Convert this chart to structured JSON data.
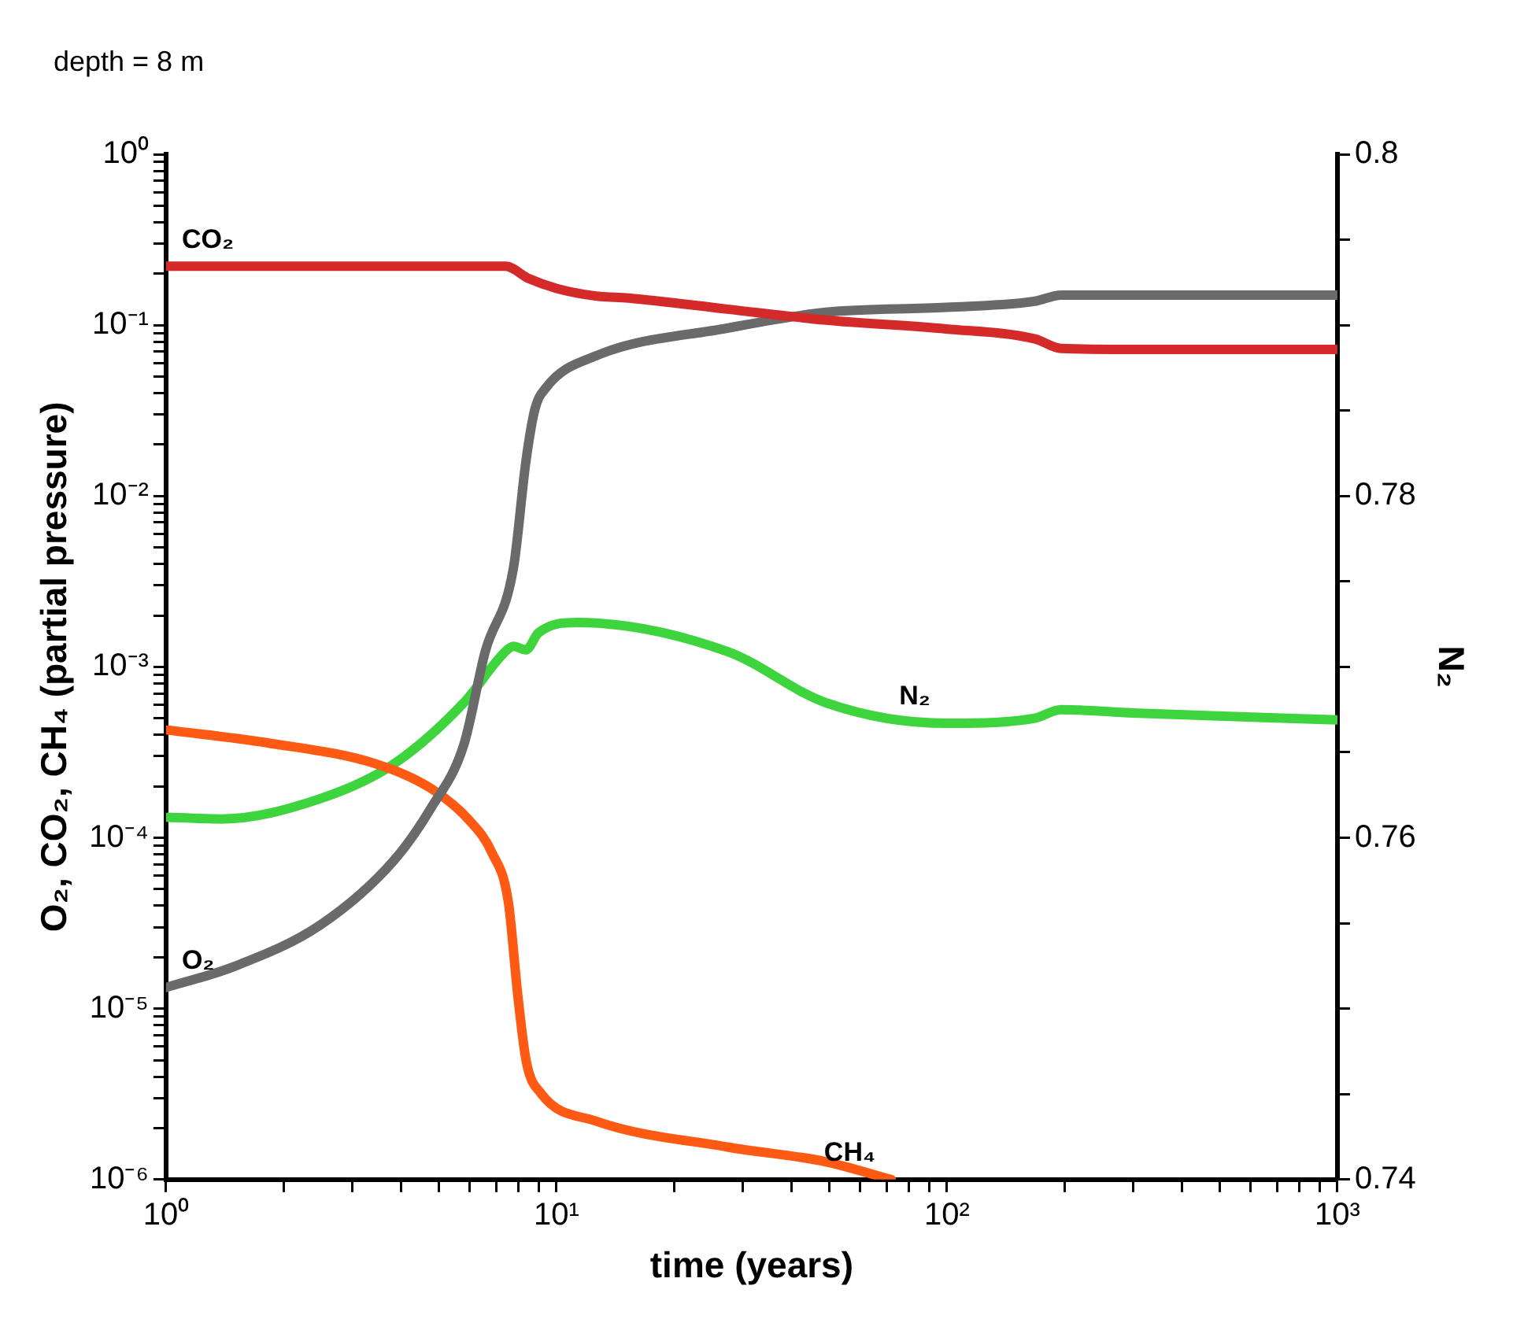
{
  "chart_data": {
    "type": "line",
    "xlabel": "time (years)",
    "ylabel": "O₂, CO₂, CH₄ (partial pressure)",
    "y2label": "N₂",
    "log": "xy",
    "grid": false,
    "xlim": [
      1,
      1000
    ],
    "xticks": [
      {
        "value": 1,
        "label": "10⁰"
      },
      {
        "value": 2,
        "label": null
      },
      {
        "value": 3,
        "label": null
      },
      {
        "value": 4,
        "label": null
      },
      {
        "value": 5,
        "label": null
      },
      {
        "value": 6,
        "label": null
      },
      {
        "value": 7,
        "label": null
      },
      {
        "value": 8,
        "label": null
      },
      {
        "value": 9,
        "label": null
      },
      {
        "value": 10,
        "label": "10¹"
      },
      {
        "value": 20,
        "label": null
      },
      {
        "value": 30,
        "label": null
      },
      {
        "value": 40,
        "label": null
      },
      {
        "value": 50,
        "label": null
      },
      {
        "value": 60,
        "label": null
      },
      {
        "value": 70,
        "label": null
      },
      {
        "value": 80,
        "label": null
      },
      {
        "value": 90,
        "label": null
      },
      {
        "value": 100,
        "label": "10²"
      },
      {
        "value": 200,
        "label": null
      },
      {
        "value": 300,
        "label": null
      },
      {
        "value": 400,
        "label": null
      },
      {
        "value": 500,
        "label": null
      },
      {
        "value": 600,
        "label": null
      },
      {
        "value": 700,
        "label": null
      },
      {
        "value": 800,
        "label": null
      },
      {
        "value": 900,
        "label": null
      },
      {
        "value": 1000,
        "label": "10³"
      }
    ],
    "ylim": [
      1e-06,
      1
    ],
    "yticks": [
      {
        "value": 1e-06,
        "label": "10⁻⁶"
      },
      {
        "value": 1e-05,
        "label": "10⁻⁵"
      },
      {
        "value": 0.0001,
        "label": "10⁻⁴"
      },
      {
        "value": 0.001,
        "label": "10⁻³"
      },
      {
        "value": 0.01,
        "label": "10⁻²"
      },
      {
        "value": 0.1,
        "label": "10⁻¹"
      },
      {
        "value": 1,
        "label": "10⁰"
      },
      {
        "value": 2e-06,
        "label": null
      },
      {
        "value": 3e-06,
        "label": null
      },
      {
        "value": 4e-06,
        "label": null
      },
      {
        "value": 5e-06,
        "label": null
      },
      {
        "value": 6e-06,
        "label": null
      },
      {
        "value": 7e-06,
        "label": null
      },
      {
        "value": 8e-06,
        "label": null
      },
      {
        "value": 9e-06,
        "label": null
      },
      {
        "value": 2e-05,
        "label": null
      },
      {
        "value": 3e-05,
        "label": null
      },
      {
        "value": 4e-05,
        "label": null
      },
      {
        "value": 5e-05,
        "label": null
      },
      {
        "value": 6e-05,
        "label": null
      },
      {
        "value": 7e-05,
        "label": null
      },
      {
        "value": 8e-05,
        "label": null
      },
      {
        "value": 9e-05,
        "label": null
      },
      {
        "value": 0.0002,
        "label": null
      },
      {
        "value": 0.0003,
        "label": null
      },
      {
        "value": 0.0004,
        "label": null
      },
      {
        "value": 0.0005,
        "label": null
      },
      {
        "value": 0.0006,
        "label": null
      },
      {
        "value": 0.0007,
        "label": null
      },
      {
        "value": 0.0008,
        "label": null
      },
      {
        "value": 0.0009,
        "label": null
      },
      {
        "value": 0.002,
        "label": null
      },
      {
        "value": 0.003,
        "label": null
      },
      {
        "value": 0.004,
        "label": null
      },
      {
        "value": 0.005,
        "label": null
      },
      {
        "value": 0.006,
        "label": null
      },
      {
        "value": 0.007,
        "label": null
      },
      {
        "value": 0.008,
        "label": null
      },
      {
        "value": 0.009,
        "label": null
      },
      {
        "value": 0.02,
        "label": null
      },
      {
        "value": 0.03,
        "label": null
      },
      {
        "value": 0.04,
        "label": null
      },
      {
        "value": 0.05,
        "label": null
      },
      {
        "value": 0.06,
        "label": null
      },
      {
        "value": 0.07,
        "label": null
      },
      {
        "value": 0.08,
        "label": null
      },
      {
        "value": 0.09,
        "label": null
      },
      {
        "value": 0.2,
        "label": null
      },
      {
        "value": 0.3,
        "label": null
      },
      {
        "value": 0.4,
        "label": null
      },
      {
        "value": 0.5,
        "label": null
      },
      {
        "value": 0.6,
        "label": null
      },
      {
        "value": 0.7,
        "label": null
      },
      {
        "value": 0.8,
        "label": null
      },
      {
        "value": 0.9,
        "label": null
      }
    ],
    "y2lim": [
      0.74,
      0.8
    ],
    "y2ticks": [
      0.74,
      {
        "value": 0.745,
        "label": null
      },
      {
        "value": 0.75,
        "label": null
      },
      {
        "value": 0.755,
        "label": null
      },
      0.76,
      {
        "value": 0.765,
        "label": null
      },
      {
        "value": 0.77,
        "label": null
      },
      {
        "value": 0.775,
        "label": null
      },
      0.78,
      {
        "value": 0.785,
        "label": null
      },
      {
        "value": 0.79,
        "label": null
      },
      {
        "value": 0.795,
        "label": null
      },
      0.8
    ],
    "series": [
      {
        "name": "CO₂",
        "color": "#d42a2a",
        "x": [
          1,
          7.4,
          8.5,
          10,
          12.6,
          15.3,
          27.4,
          49,
          99.5,
          168,
          196,
          300,
          1000
        ],
        "values": [
          0.221,
          0.221,
          0.187,
          0.164,
          0.148,
          0.144,
          0.124,
          0.107,
          0.095,
          0.083,
          0.073,
          0.072,
          0.072
        ]
      },
      {
        "name": "O₂",
        "color": "#6a6a6a",
        "x": [
          1,
          1.49,
          2.49,
          3.82,
          4.76,
          5.79,
          6.57,
          7.76,
          8.35,
          8.8,
          9.4,
          12.6,
          27.4,
          49,
          99.5,
          168,
          196,
          300,
          1000
        ],
        "values": [
          1.33e-05,
          1.76e-05,
          3.1e-05,
          7.3e-05,
          0.000148,
          0.00035,
          0.00123,
          0.0038,
          0.0159,
          0.032,
          0.043,
          0.066,
          0.096,
          0.119,
          0.127,
          0.138,
          0.15,
          0.15,
          0.15
        ]
      },
      {
        "name": "CH₄",
        "color": "#ff5a14",
        "x": [
          1.01,
          1.81,
          3.46,
          4.76,
          5.97,
          6.83,
          7.53,
          7.96,
          8.37,
          9.12,
          12.6,
          27.4,
          49,
          72
        ],
        "values": [
          0.000427,
          0.00036,
          0.00027,
          0.000195,
          0.000127,
          8.2e-05,
          4.2e-05,
          1.2e-05,
          4.9e-06,
          3.2e-06,
          2.2e-06,
          1.55e-06,
          1.27e-06,
          1e-06
        ]
      },
      {
        "name": "N₂",
        "color": "#3ed43e",
        "axis": "y2",
        "x": [
          1.01,
          1.39,
          2.49,
          3.82,
          5.79,
          7.4,
          7.76,
          8.35,
          9.0,
          11.3,
          27.4,
          49,
          99.5,
          168,
          196,
          300,
          1000
        ],
        "values": [
          0.7612,
          0.7611,
          0.7623,
          0.7643,
          0.7679,
          0.7709,
          0.7712,
          0.771,
          0.772,
          0.7726,
          0.7709,
          0.7679,
          0.7667,
          0.767,
          0.7675,
          0.7673,
          0.7669
        ]
      }
    ],
    "annotations": [
      "depth = 8 m"
    ]
  }
}
